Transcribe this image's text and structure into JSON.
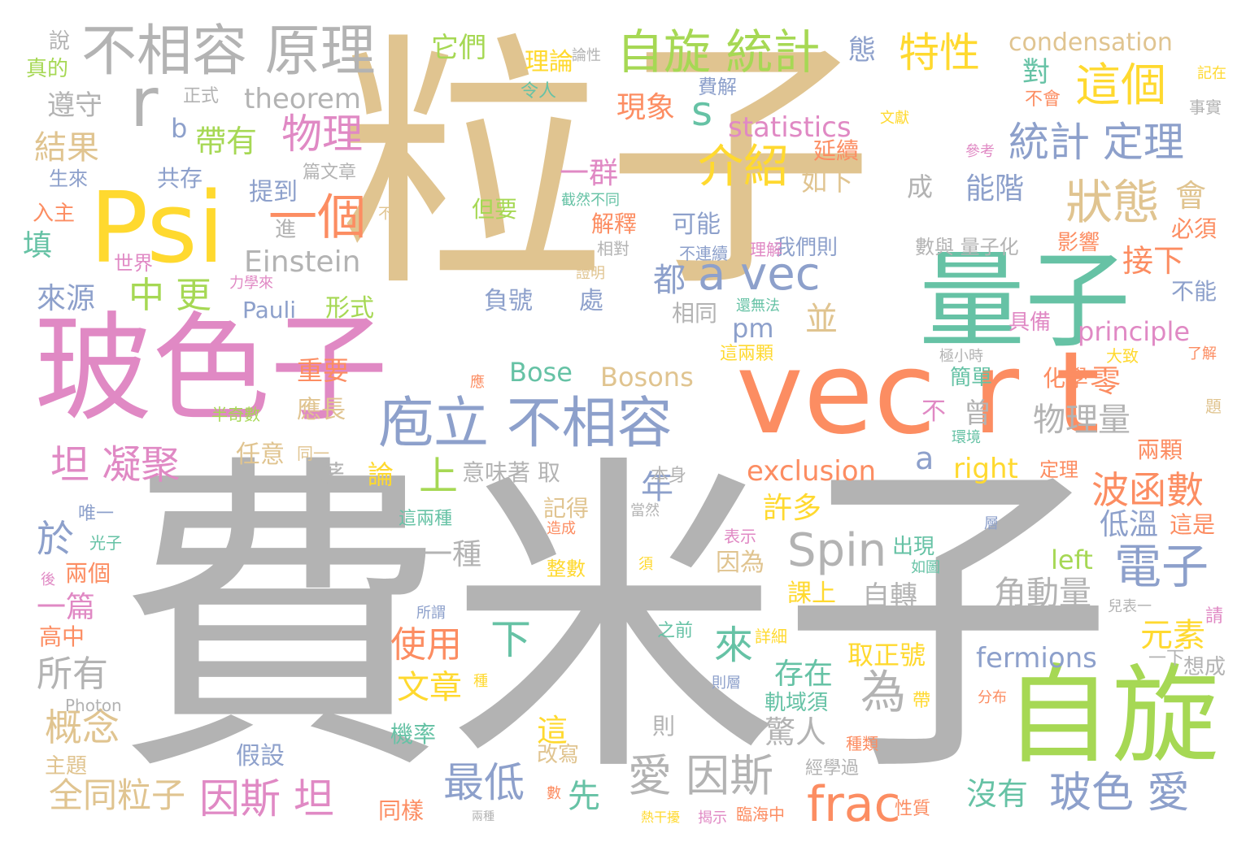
{
  "colors": {
    "tan": "#e0c490",
    "gray": "#b3b3b3",
    "pink": "#e089c4",
    "orange": "#fc8d62",
    "teal": "#66c2a5",
    "green": "#a6d854",
    "blue": "#8da0cb",
    "yellow": "#ffd92f"
  },
  "words": [
    {
      "text": "粒子",
      "c": "tan"
    },
    {
      "text": "費米子",
      "c": "gray"
    },
    {
      "text": "玻色子",
      "c": "pink"
    },
    {
      "text": "vec r t",
      "c": "orange"
    },
    {
      "text": "量子",
      "c": "teal"
    },
    {
      "text": "自旋",
      "c": "green"
    },
    {
      "text": "Psi",
      "c": "yellow"
    },
    {
      "text": "不相容 原理",
      "c": "gray"
    },
    {
      "text": "庖立 不相容",
      "c": "blue"
    },
    {
      "text": "自旋 統計",
      "c": "green"
    },
    {
      "text": "condensation",
      "c": "tan"
    },
    {
      "text": "這個",
      "c": "yellow"
    },
    {
      "text": "特性",
      "c": "yellow"
    },
    {
      "text": "狀態",
      "c": "tan"
    },
    {
      "text": "統計 定理",
      "c": "blue"
    },
    {
      "text": "介紹",
      "c": "yellow"
    },
    {
      "text": "a vec",
      "c": "blue"
    },
    {
      "text": "一個",
      "c": "orange"
    },
    {
      "text": "物理",
      "c": "pink"
    },
    {
      "text": "statistics",
      "c": "pink"
    },
    {
      "text": "theorem",
      "c": "gray"
    },
    {
      "text": "Einstein",
      "c": "gray"
    },
    {
      "text": "Pauli",
      "c": "blue"
    },
    {
      "text": "帶有",
      "c": "green"
    },
    {
      "text": "中 更",
      "c": "green"
    },
    {
      "text": "坦 凝聚",
      "c": "pink"
    },
    {
      "text": "愛 因斯",
      "c": "gray"
    },
    {
      "text": "因斯 坦",
      "c": "pink"
    },
    {
      "text": "frac",
      "c": "orange"
    },
    {
      "text": "玻色 愛",
      "c": "blue"
    },
    {
      "text": "Spin",
      "c": "gray"
    },
    {
      "text": "電子",
      "c": "blue"
    },
    {
      "text": "波函數",
      "c": "orange"
    },
    {
      "text": "exclusion",
      "c": "orange"
    },
    {
      "text": "right",
      "c": "yellow"
    },
    {
      "text": "Bosons",
      "c": "tan"
    },
    {
      "text": "Bose",
      "c": "teal"
    },
    {
      "text": "principle",
      "c": "pink"
    },
    {
      "text": "fermions",
      "c": "blue"
    },
    {
      "text": "最低",
      "c": "blue"
    },
    {
      "text": "全同粒子",
      "c": "tan"
    },
    {
      "text": "概念",
      "c": "tan"
    },
    {
      "text": "所有",
      "c": "gray"
    },
    {
      "text": "為",
      "c": "gray"
    },
    {
      "text": "物理量",
      "c": "gray"
    },
    {
      "text": "角動量",
      "c": "gray"
    },
    {
      "text": "沒有",
      "c": "teal"
    },
    {
      "text": "存在",
      "c": "teal"
    },
    {
      "text": "使用",
      "c": "orange"
    },
    {
      "text": "文章",
      "c": "yellow"
    },
    {
      "text": "元素",
      "c": "yellow"
    },
    {
      "text": "低溫",
      "c": "blue"
    },
    {
      "text": "取正號",
      "c": "yellow"
    },
    {
      "text": "現象",
      "c": "orange"
    },
    {
      "text": "一群",
      "c": "pink"
    },
    {
      "text": "能階",
      "c": "blue"
    },
    {
      "text": "遵守",
      "c": "gray"
    },
    {
      "text": "結果",
      "c": "tan"
    },
    {
      "text": "來源",
      "c": "blue"
    },
    {
      "text": "上",
      "c": "green"
    },
    {
      "text": "於",
      "c": "blue"
    },
    {
      "text": "下",
      "c": "teal"
    },
    {
      "text": "來",
      "c": "teal"
    },
    {
      "text": "s",
      "c": "teal"
    },
    {
      "text": "r",
      "c": "gray"
    },
    {
      "text": "b",
      "c": "blue"
    },
    {
      "text": "a",
      "c": "blue"
    },
    {
      "text": "pm",
      "c": "blue"
    },
    {
      "text": "left",
      "c": "green"
    },
    {
      "text": "一篇",
      "c": "pink"
    },
    {
      "text": "高中",
      "c": "orange"
    },
    {
      "text": "兩個",
      "c": "orange"
    },
    {
      "text": "自轉",
      "c": "gray"
    },
    {
      "text": "驚人",
      "c": "gray"
    },
    {
      "text": "軌域須",
      "c": "teal"
    },
    {
      "text": "出現",
      "c": "teal"
    },
    {
      "text": "許多",
      "c": "yellow"
    },
    {
      "text": "一種",
      "c": "gray"
    },
    {
      "text": "理論",
      "c": "yellow"
    },
    {
      "text": "它們",
      "c": "green"
    },
    {
      "text": "態",
      "c": "blue"
    },
    {
      "text": "對",
      "c": "teal"
    },
    {
      "text": "接下",
      "c": "orange"
    },
    {
      "text": "會",
      "c": "tan"
    },
    {
      "text": "零",
      "c": "orange"
    },
    {
      "text": "化學",
      "c": "orange"
    },
    {
      "text": "這是",
      "c": "orange"
    },
    {
      "text": "兩顆",
      "c": "orange"
    },
    {
      "text": "影響",
      "c": "orange"
    },
    {
      "text": "必須",
      "c": "orange"
    },
    {
      "text": "不能",
      "c": "blue"
    },
    {
      "text": "可能",
      "c": "blue"
    },
    {
      "text": "都",
      "c": "blue"
    },
    {
      "text": "相同",
      "c": "gray"
    },
    {
      "text": "並",
      "c": "tan"
    },
    {
      "text": "年",
      "c": "blue"
    },
    {
      "text": "負號",
      "c": "blue"
    },
    {
      "text": "處",
      "c": "blue"
    },
    {
      "text": "重要",
      "c": "orange"
    },
    {
      "text": "應長",
      "c": "tan"
    },
    {
      "text": "任意",
      "c": "tan"
    },
    {
      "text": "形式",
      "c": "green"
    },
    {
      "text": "提到",
      "c": "blue"
    },
    {
      "text": "共存",
      "c": "blue"
    },
    {
      "text": "篇文章",
      "c": "gray"
    },
    {
      "text": "進",
      "c": "gray"
    },
    {
      "text": "這兩顆",
      "c": "yellow"
    },
    {
      "text": "這兩種",
      "c": "teal"
    },
    {
      "text": "意味著 取",
      "c": "gray"
    },
    {
      "text": "課上",
      "c": "yellow"
    },
    {
      "text": "因為",
      "c": "tan"
    },
    {
      "text": "這",
      "c": "yellow"
    },
    {
      "text": "改寫",
      "c": "tan"
    },
    {
      "text": "機率",
      "c": "teal"
    },
    {
      "text": "假設",
      "c": "blue"
    },
    {
      "text": "同樣",
      "c": "orange"
    },
    {
      "text": "先",
      "c": "teal"
    },
    {
      "text": "則",
      "c": "gray"
    },
    {
      "text": "如下",
      "c": "tan"
    },
    {
      "text": "延續",
      "c": "orange"
    },
    {
      "text": "成",
      "c": "gray"
    },
    {
      "text": "我們則",
      "c": "blue"
    },
    {
      "text": "解釋",
      "c": "orange"
    },
    {
      "text": "但要",
      "c": "green"
    },
    {
      "text": "記得",
      "c": "tan"
    },
    {
      "text": "論",
      "c": "yellow"
    },
    {
      "text": "著",
      "c": "gray"
    },
    {
      "text": "曾",
      "c": "gray"
    },
    {
      "text": "不",
      "c": "pink"
    },
    {
      "text": "簡單",
      "c": "teal"
    },
    {
      "text": "定理",
      "c": "orange"
    },
    {
      "text": "具備",
      "c": "pink"
    },
    {
      "text": "填",
      "c": "teal"
    },
    {
      "text": "入主",
      "c": "orange"
    },
    {
      "text": "生來",
      "c": "blue"
    },
    {
      "text": "真的",
      "c": "green"
    },
    {
      "text": "說",
      "c": "gray"
    },
    {
      "text": "正式",
      "c": "gray"
    },
    {
      "text": "世界",
      "c": "pink"
    },
    {
      "text": "力學來",
      "c": "pink"
    },
    {
      "text": "令人",
      "c": "teal"
    },
    {
      "text": "費解",
      "c": "blue"
    },
    {
      "text": "論性",
      "c": "gray"
    },
    {
      "text": "記在",
      "c": "yellow"
    },
    {
      "text": "文獻",
      "c": "yellow"
    },
    {
      "text": "事實",
      "c": "gray"
    },
    {
      "text": "不會",
      "c": "orange"
    },
    {
      "text": "參考",
      "c": "pink"
    },
    {
      "text": "數與 量子化",
      "c": "gray"
    },
    {
      "text": "理解",
      "c": "pink"
    },
    {
      "text": "不連續",
      "c": "blue"
    },
    {
      "text": "相對",
      "c": "gray"
    },
    {
      "text": "截然不同",
      "c": "teal"
    },
    {
      "text": "證明",
      "c": "tan"
    },
    {
      "text": "不變",
      "c": "tan"
    },
    {
      "text": "還無法",
      "c": "teal"
    },
    {
      "text": "極小時",
      "c": "gray"
    },
    {
      "text": "大致",
      "c": "yellow"
    },
    {
      "text": "了解",
      "c": "orange"
    },
    {
      "text": "題",
      "c": "tan"
    },
    {
      "text": "環境",
      "c": "teal"
    },
    {
      "text": "應",
      "c": "orange"
    },
    {
      "text": "半奇數",
      "c": "green"
    },
    {
      "text": "同一",
      "c": "tan"
    },
    {
      "text": "本身",
      "c": "gray"
    },
    {
      "text": "唯一",
      "c": "blue"
    },
    {
      "text": "光子",
      "c": "teal"
    },
    {
      "text": "後",
      "c": "pink"
    },
    {
      "text": "造成",
      "c": "orange"
    },
    {
      "text": "當然",
      "c": "gray"
    },
    {
      "text": "表示",
      "c": "pink"
    },
    {
      "text": "整數",
      "c": "yellow"
    },
    {
      "text": "須",
      "c": "yellow"
    },
    {
      "text": "如圖",
      "c": "teal"
    },
    {
      "text": "層",
      "c": "blue"
    },
    {
      "text": "所謂",
      "c": "blue"
    },
    {
      "text": "之前",
      "c": "teal"
    },
    {
      "text": "詳細",
      "c": "yellow"
    },
    {
      "text": "則層",
      "c": "blue"
    },
    {
      "text": "兒表一",
      "c": "gray"
    },
    {
      "text": "請",
      "c": "pink"
    },
    {
      "text": "一下",
      "c": "gray"
    },
    {
      "text": "想成",
      "c": "gray"
    },
    {
      "text": "分布",
      "c": "orange"
    },
    {
      "text": "帶",
      "c": "yellow"
    },
    {
      "text": "Photon",
      "c": "gray"
    },
    {
      "text": "種",
      "c": "yellow"
    },
    {
      "text": "主題",
      "c": "tan"
    },
    {
      "text": "種類",
      "c": "orange"
    },
    {
      "text": "經學過",
      "c": "gray"
    },
    {
      "text": "性質",
      "c": "orange"
    },
    {
      "text": "臨海中",
      "c": "orange"
    },
    {
      "text": "數",
      "c": "orange"
    },
    {
      "text": "兩種",
      "c": "gray"
    },
    {
      "text": "熱干擾",
      "c": "yellow"
    },
    {
      "text": "揭示",
      "c": "pink"
    }
  ]
}
